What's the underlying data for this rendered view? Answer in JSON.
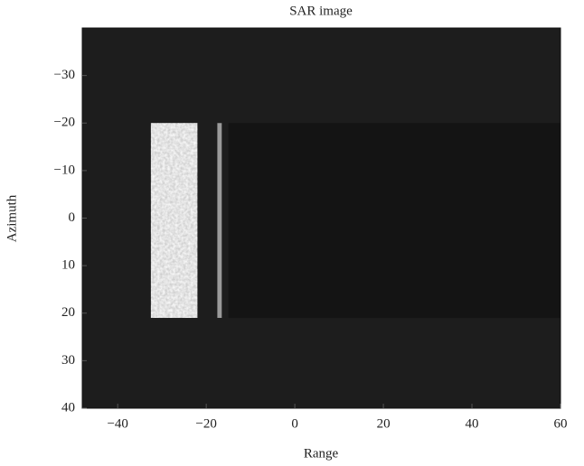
{
  "chart_data": {
    "type": "image",
    "title": "SAR image",
    "x_label": "Range",
    "y_label": "Azimuth",
    "xlim": [
      -48,
      60
    ],
    "ylim": [
      -40,
      40
    ],
    "y_reversed": true,
    "background": "#1d1d1d",
    "xticks": [
      {
        "value": -40,
        "label": "−40"
      },
      {
        "value": -20,
        "label": "−20"
      },
      0,
      20,
      40,
      60
    ],
    "yticks": [
      {
        "value": -30,
        "label": "−30"
      },
      {
        "value": -20,
        "label": "−20"
      },
      {
        "value": -10,
        "label": "−10"
      },
      0,
      10,
      20,
      30,
      40
    ],
    "regions": [
      {
        "xlim": [
          -15,
          60
        ],
        "ylim": [
          -20,
          21
        ],
        "color": "#141414",
        "speckle": false
      },
      {
        "xlim": [
          -17.5,
          -16.5
        ],
        "ylim": [
          -20,
          21
        ],
        "color": "#9a9a9a",
        "speckle": false
      },
      {
        "xlim": [
          -32.5,
          -22
        ],
        "ylim": [
          -20,
          21
        ],
        "color": "#cfcfcf",
        "speckle": true
      }
    ]
  }
}
